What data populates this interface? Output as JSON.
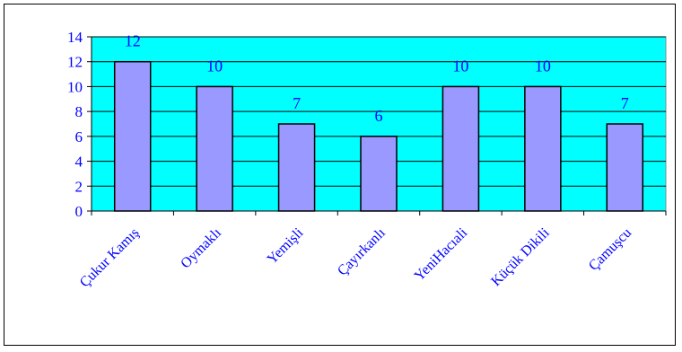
{
  "chart_data": {
    "type": "bar",
    "categories": [
      "Çukur Kamış",
      "Oymaklı",
      "Yemişli",
      "Çayırkanlı",
      "YeniHacıali",
      "Küçük Dikili",
      "Çamuşcu"
    ],
    "values": [
      12,
      10,
      7,
      6,
      10,
      10,
      7
    ],
    "data_labels": [
      "12",
      "10",
      "7",
      "6",
      "10",
      "10",
      "7"
    ],
    "y_ticks": [
      "0",
      "2",
      "4",
      "6",
      "8",
      "10",
      "12",
      "14"
    ],
    "ylim": [
      0,
      14
    ],
    "grid": true,
    "colors": {
      "plot_background": "#00ffff",
      "bar_fill": "#9999ff",
      "text": "#0000ff",
      "axis": "#000000"
    }
  }
}
